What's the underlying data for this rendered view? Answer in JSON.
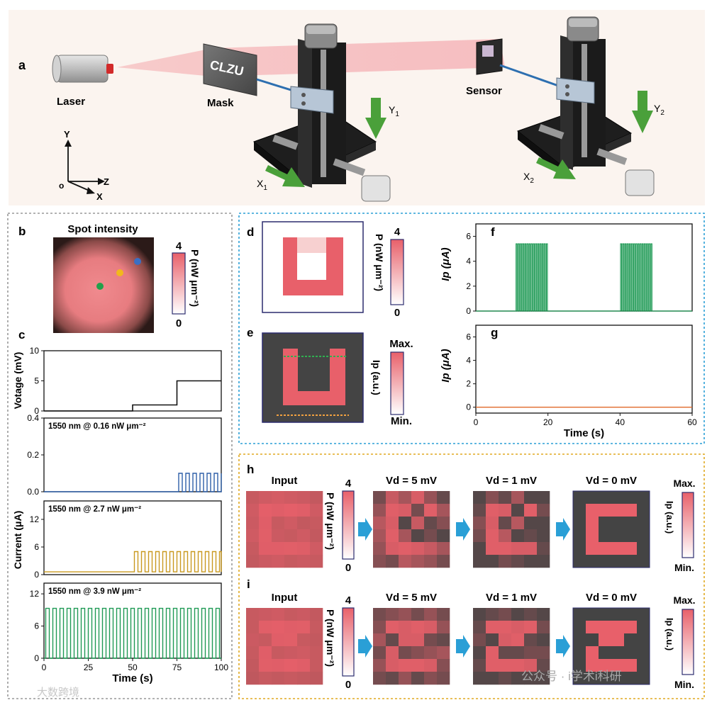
{
  "panel_letters": {
    "a": "a",
    "b": "b",
    "c": "c",
    "d": "d",
    "e": "e",
    "f": "f",
    "g": "g",
    "h": "h",
    "i": "i"
  },
  "setup": {
    "laser_label": "Laser",
    "mask_label": "Mask",
    "mask_text": "CLZU",
    "sensor_label": "Sensor",
    "axis_y": "Y",
    "axis_z": "Z",
    "axis_x": "X",
    "axis_origin": "o",
    "y1": "Y",
    "y1_sub": "1",
    "x1": "X",
    "x1_sub": "1",
    "y2": "Y",
    "y2_sub": "2",
    "x2": "X",
    "x2_sub": "2"
  },
  "panel_b": {
    "title": "Spot intensity",
    "colorbar_label": "P (nW μm⁻²)",
    "colorbar_max": "4",
    "colorbar_min": "0",
    "dots": [
      {
        "name": "green",
        "color": "#22a04a"
      },
      {
        "name": "yellow",
        "color": "#f2b81c"
      },
      {
        "name": "blue",
        "color": "#3a6fc4"
      }
    ]
  },
  "chart_data": [
    {
      "id": "c-voltage",
      "type": "line",
      "ylabel": "Votage (mV)",
      "ylim": [
        0,
        10
      ],
      "yticks": [
        0,
        5,
        10
      ],
      "xlim": [
        0,
        100
      ],
      "series": [
        {
          "name": "Voltage",
          "color": "#111111",
          "x": [
            0,
            50,
            50,
            75,
            75,
            100
          ],
          "y": [
            0,
            0,
            1,
            1,
            5,
            5
          ]
        }
      ]
    },
    {
      "id": "c-blue",
      "type": "line",
      "title": "1550 nm @ 0.16 nW μm⁻²",
      "ylim": [
        0,
        0.4
      ],
      "yticks": [
        "0.0",
        "0.2",
        "0.4"
      ],
      "xlim": [
        0,
        100
      ],
      "series": [
        {
          "name": "blue",
          "color": "#2e5fa8",
          "baseline": 0.0,
          "pulses": [
            {
              "start": 75,
              "end": 100,
              "period": 4,
              "high": 0.1,
              "duty": 0.5
            }
          ]
        }
      ]
    },
    {
      "id": "c-yellow",
      "type": "line",
      "title": "1550 nm @ 2.7 nW μm⁻²",
      "ylim": [
        0,
        16
      ],
      "yticks": [
        0,
        6,
        12
      ],
      "xlim": [
        0,
        100
      ],
      "series": [
        {
          "name": "yellow",
          "color": "#c9991f",
          "baseline": 0.6,
          "pulses": [
            {
              "start": 50,
              "end": 100,
              "period": 4,
              "high": 5,
              "duty": 0.5
            }
          ]
        }
      ]
    },
    {
      "id": "c-green",
      "type": "line",
      "title": "1550 nm @ 3.9 nW μm⁻²",
      "ylim": [
        0,
        14
      ],
      "yticks": [
        0,
        6,
        12
      ],
      "xlim": [
        0,
        100
      ],
      "xlabel": "Time (s)",
      "xticks": [
        0,
        25,
        50,
        75,
        100
      ],
      "series": [
        {
          "name": "green",
          "color": "#1f9a55",
          "baseline": 0.0,
          "pulses": [
            {
              "start": 0,
              "end": 100,
              "period": 4,
              "high": 9.3,
              "duty": 0.5
            }
          ]
        }
      ]
    },
    {
      "id": "f",
      "type": "line",
      "ylabel": "Ip (μA)",
      "ylim": [
        0,
        7
      ],
      "yticks": [
        0,
        2,
        4,
        6
      ],
      "xlim": [
        0,
        60
      ],
      "series": [
        {
          "name": "f",
          "color": "#1f9a55",
          "baseline": 0.0,
          "pulses": [
            {
              "start": 11,
              "end": 20,
              "period": 0.6,
              "high": 5.4,
              "duty": 0.5
            },
            {
              "start": 40,
              "end": 49,
              "period": 0.6,
              "high": 5.4,
              "duty": 0.5
            }
          ]
        }
      ]
    },
    {
      "id": "g",
      "type": "line",
      "ylabel": "Ip (μA)",
      "ylim": [
        -0.5,
        7
      ],
      "yticks": [
        0,
        2,
        4,
        6
      ],
      "xlim": [
        0,
        60
      ],
      "xlabel": "Time (s)",
      "xticks": [
        0,
        20,
        40,
        60
      ],
      "series": [
        {
          "name": "g",
          "color": "#e06a2a",
          "baseline": 0.0,
          "pulses": []
        }
      ]
    }
  ],
  "panel_c": {
    "current_label": "Current (μA)"
  },
  "panel_d": {
    "colorbar_label": "P (nW μm⁻²)",
    "colorbar_max": "4",
    "colorbar_min": "0"
  },
  "panel_e": {
    "colorbar_label": "Ip (a.u.)",
    "colorbar_max": "Max.",
    "colorbar_min": "Min."
  },
  "panel_h": {
    "titles": {
      "input": "Input",
      "vd5": "Vd = 5 mV",
      "vd1": "Vd = 1 mV",
      "vd0": "Vd = 0 mV"
    },
    "colorbar_p": {
      "label": "P (nW μm⁻²)",
      "max": "4",
      "min": "0"
    },
    "colorbar_i": {
      "label": "Ip (a.u.)",
      "max": "Max.",
      "min": "Min."
    },
    "grids": {
      "input": [
        [
          0.6,
          0.7,
          0.75,
          0.7,
          0.65,
          0.55
        ],
        [
          0.7,
          0.95,
          0.9,
          0.95,
          0.9,
          0.7
        ],
        [
          0.65,
          0.9,
          0.6,
          0.7,
          0.55,
          0.6
        ],
        [
          0.7,
          0.92,
          0.65,
          0.6,
          0.7,
          0.55
        ],
        [
          0.6,
          0.9,
          0.9,
          0.92,
          0.88,
          0.7
        ],
        [
          0.55,
          0.65,
          0.7,
          0.6,
          0.65,
          0.6
        ]
      ],
      "vd5": [
        [
          0.3,
          0.8,
          0.6,
          0.9,
          0.5,
          0.2
        ],
        [
          0.5,
          0.95,
          0.9,
          0.3,
          0.95,
          0.6
        ],
        [
          0.7,
          0.9,
          0.1,
          0.8,
          0.2,
          0.4
        ],
        [
          0.6,
          0.95,
          0.6,
          0.1,
          0.3,
          0.1
        ],
        [
          0.5,
          0.9,
          0.95,
          0.9,
          0.8,
          0.6
        ],
        [
          0.4,
          0.3,
          0.7,
          0.6,
          0.5,
          0.3
        ]
      ],
      "vd1": [
        [
          0.1,
          0.4,
          0.2,
          0.6,
          0.1,
          0.1
        ],
        [
          0.2,
          0.95,
          0.9,
          0.1,
          0.95,
          0.3
        ],
        [
          0.4,
          0.9,
          0.2,
          0.7,
          0.1,
          0.1
        ],
        [
          0.3,
          0.95,
          0.7,
          0.1,
          0.2,
          0.1
        ],
        [
          0.1,
          0.95,
          0.95,
          0.9,
          0.9,
          0.2
        ],
        [
          0.1,
          0.1,
          0.3,
          0.2,
          0.1,
          0.1
        ]
      ],
      "vd0": [
        [
          0,
          0,
          0,
          0,
          0,
          0
        ],
        [
          0,
          1,
          1,
          1,
          1,
          0
        ],
        [
          0,
          1,
          0,
          0,
          0,
          0
        ],
        [
          0,
          1,
          0,
          0,
          0,
          0
        ],
        [
          0,
          1,
          1,
          1,
          1,
          0
        ],
        [
          0,
          0,
          0,
          0,
          0,
          0
        ]
      ]
    }
  },
  "panel_i": {
    "titles": {
      "input": "Input",
      "vd5": "Vd = 5 mV",
      "vd1": "Vd = 1 mV",
      "vd0": "Vd = 0 mV"
    },
    "colorbar_p": {
      "label": "P (nW μm⁻²)",
      "max": "4",
      "min": "0"
    },
    "colorbar_i": {
      "label": "Ip (a.u.)",
      "max": "Max.",
      "min": "Min."
    },
    "grids": {
      "input": [
        [
          0.6,
          0.65,
          0.7,
          0.6,
          0.65,
          0.55
        ],
        [
          0.6,
          0.92,
          0.95,
          0.9,
          0.92,
          0.6
        ],
        [
          0.65,
          0.6,
          0.9,
          0.92,
          0.6,
          0.55
        ],
        [
          0.6,
          0.9,
          0.6,
          0.65,
          0.7,
          0.6
        ],
        [
          0.55,
          0.92,
          0.9,
          0.95,
          0.9,
          0.6
        ],
        [
          0.5,
          0.6,
          0.55,
          0.6,
          0.55,
          0.5
        ]
      ],
      "vd5": [
        [
          0.3,
          0.4,
          0.5,
          0.3,
          0.5,
          0.3
        ],
        [
          0.4,
          0.95,
          0.9,
          0.95,
          0.9,
          0.5
        ],
        [
          0.6,
          0.2,
          0.9,
          0.9,
          0.3,
          0.2
        ],
        [
          0.3,
          0.9,
          0.3,
          0.4,
          0.5,
          0.6
        ],
        [
          0.5,
          0.9,
          0.95,
          0.95,
          0.9,
          0.4
        ],
        [
          0.3,
          0.2,
          0.5,
          0.2,
          0.4,
          0.3
        ]
      ],
      "vd1": [
        [
          0.1,
          0.2,
          0.3,
          0.1,
          0.2,
          0.1
        ],
        [
          0.2,
          0.95,
          0.95,
          0.9,
          0.95,
          0.3
        ],
        [
          0.3,
          0.1,
          0.9,
          0.95,
          0.2,
          0.1
        ],
        [
          0.1,
          0.95,
          0.2,
          0.2,
          0.3,
          0.3
        ],
        [
          0.2,
          0.95,
          0.95,
          0.95,
          0.9,
          0.2
        ],
        [
          0.1,
          0.1,
          0.2,
          0.1,
          0.1,
          0.1
        ]
      ],
      "vd0": [
        [
          0,
          0,
          0,
          0,
          0,
          0
        ],
        [
          0,
          1,
          1,
          1,
          1,
          0
        ],
        [
          0,
          0,
          1,
          1,
          0,
          0
        ],
        [
          0,
          1,
          0,
          0,
          0,
          0
        ],
        [
          0,
          1,
          1,
          1,
          1,
          0
        ],
        [
          0,
          0,
          0,
          0,
          0,
          0
        ]
      ]
    }
  },
  "watermarks": {
    "left": "大数跨境",
    "right": "公众号 · i学术i科研"
  },
  "colors": {
    "pink": "#e8606a",
    "dark": "#3b3b3b",
    "green": "#2e9a3e",
    "blue_border": "#2a9fd6",
    "yellow_border": "#e0a820",
    "gray_border": "#999999"
  }
}
